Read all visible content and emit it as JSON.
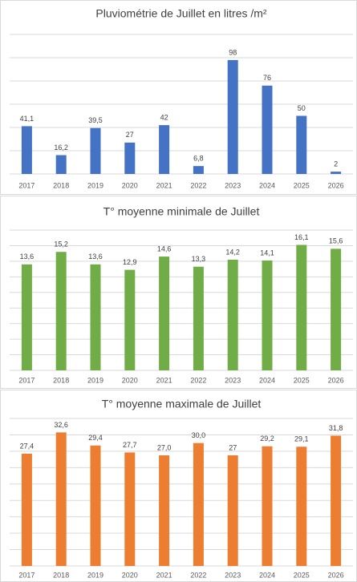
{
  "chart_data": [
    {
      "type": "bar",
      "title": "Pluviométrie de Juillet en litres /m²",
      "categories": [
        "2017",
        "2018",
        "2019",
        "2020",
        "2021",
        "2022",
        "2023",
        "2024",
        "2025",
        "2026"
      ],
      "values": [
        41.1,
        16.2,
        39.5,
        27,
        42,
        6.8,
        98,
        76,
        50,
        2
      ],
      "value_labels": [
        "41,1",
        "16,2",
        "39,5",
        "27",
        "42",
        "6,8",
        "98",
        "76",
        "50",
        "2"
      ],
      "color": "#4472c4",
      "ylim": [
        0,
        120
      ],
      "yticks": [
        0,
        20,
        40,
        60,
        80,
        100,
        120
      ],
      "grid": true
    },
    {
      "type": "bar",
      "title": "T° moyenne minimale de Juillet",
      "categories": [
        "2017",
        "2018",
        "2019",
        "2020",
        "2021",
        "2022",
        "2023",
        "2024",
        "2025",
        "2026"
      ],
      "values": [
        13.6,
        15.2,
        13.6,
        12.9,
        14.6,
        13.3,
        14.2,
        14.1,
        16.1,
        15.6
      ],
      "value_labels": [
        "13,6",
        "15,2",
        "13,6",
        "12,9",
        "14,6",
        "13,3",
        "14,2",
        "14,1",
        "16,1",
        "15,6"
      ],
      "color": "#70ad47",
      "ylim": [
        0,
        18
      ],
      "yticks": [
        0,
        2,
        4,
        6,
        8,
        10,
        12,
        14,
        16,
        18
      ],
      "grid": true
    },
    {
      "type": "bar",
      "title": "T° moyenne maximale de Juillet",
      "categories": [
        "2017",
        "2018",
        "2019",
        "2020",
        "2021",
        "2022",
        "2023",
        "2024",
        "2025",
        "2026"
      ],
      "values": [
        27.4,
        32.6,
        29.4,
        27.7,
        27.0,
        30.0,
        27,
        29.2,
        29.1,
        31.8
      ],
      "value_labels": [
        "27,4",
        "32,6",
        "29,4",
        "27,7",
        "27,0",
        "30,0",
        "27",
        "29,2",
        "29,1",
        "31,8"
      ],
      "color": "#ed7d31",
      "ylim": [
        0,
        36
      ],
      "yticks": [
        0,
        4,
        8,
        12,
        16,
        20,
        24,
        28,
        32,
        36
      ],
      "grid": true
    }
  ]
}
